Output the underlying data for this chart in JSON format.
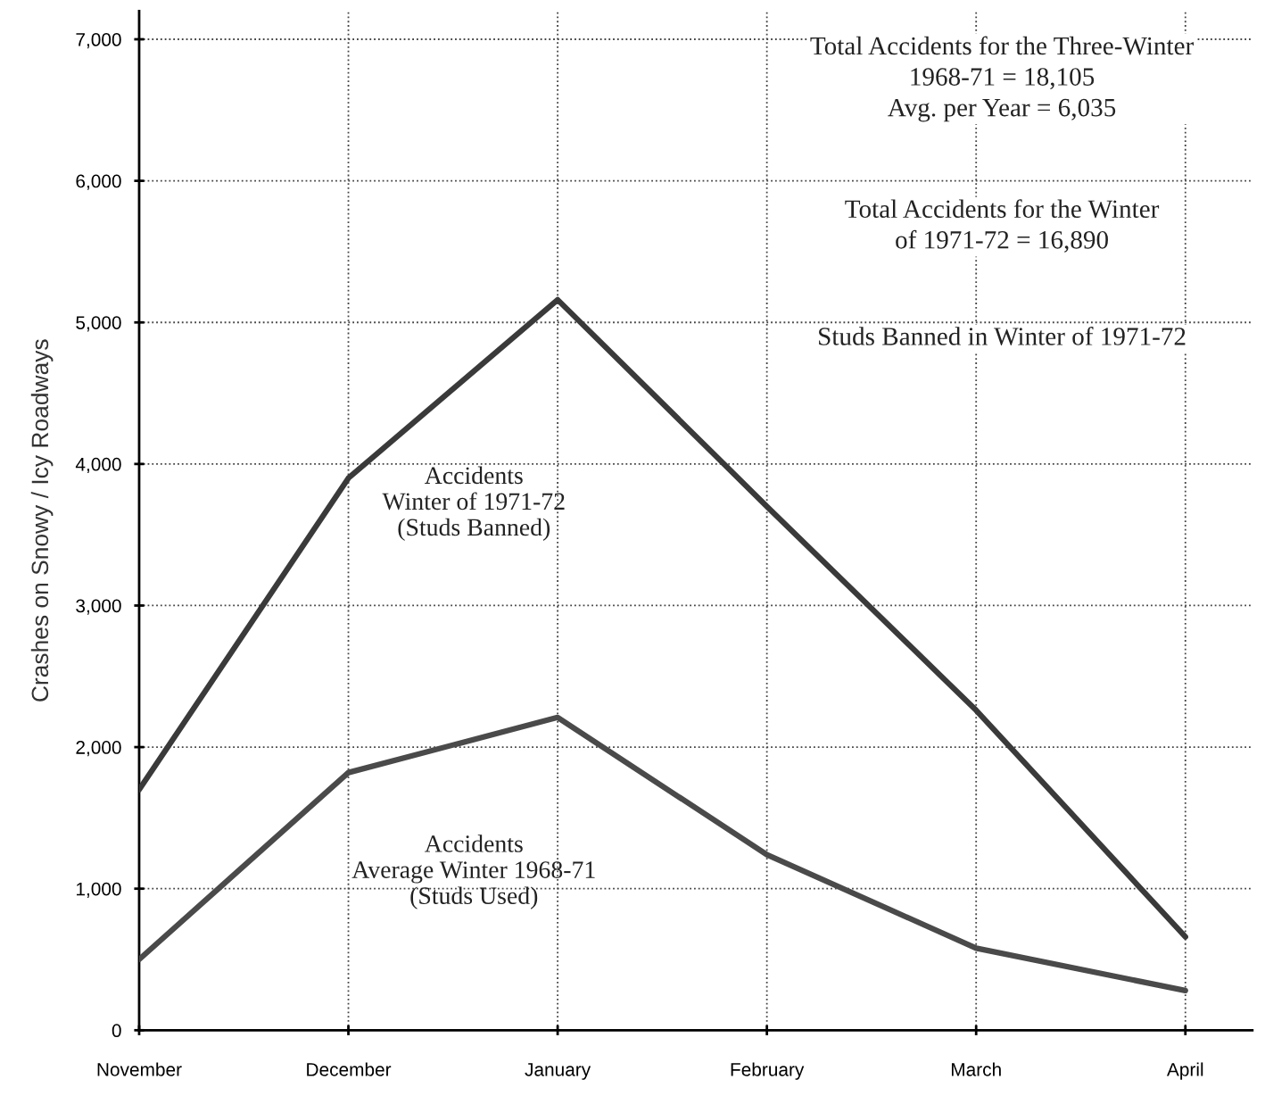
{
  "chart_data": {
    "type": "line",
    "ylabel": "Crashes on Snowy / Icy Roadways",
    "categories": [
      "November",
      "December",
      "January",
      "February",
      "March",
      "April"
    ],
    "series": [
      {
        "name": "Accidents\nWinter of 1971-72\n(Studs Banned)",
        "color": "#3a3a3a",
        "values": [
          1700,
          3900,
          5160,
          3700,
          2260,
          660
        ]
      },
      {
        "name": "Accidents\nAverage Winter 1968-71\n(Studs Used)",
        "color": "#4a4a4a",
        "values": [
          500,
          1820,
          2210,
          1240,
          580,
          280
        ]
      }
    ],
    "ylim": [
      0,
      7200
    ],
    "yticks": [
      0,
      {
        "value": 1000,
        "label": "1,000"
      },
      {
        "value": 2000,
        "label": "2,000"
      },
      {
        "value": 3000,
        "label": "3,000"
      },
      {
        "value": 4000,
        "label": "4,000"
      },
      {
        "value": 5000,
        "label": "5,000"
      },
      {
        "value": 6000,
        "label": "6,000"
      },
      {
        "value": 7000,
        "label": "7,000"
      }
    ],
    "grid": true,
    "marker": "none",
    "line_style": "solid",
    "legend": false,
    "annotations": [
      "Total Accidents for the Three-Winter\n1968-71 = 18,105\nAvg. per Year = 6,035",
      "Total Accidents for the Winter\nof 1971-72 = 16,890",
      "Studs Banned in Winter of 1971-72"
    ]
  }
}
